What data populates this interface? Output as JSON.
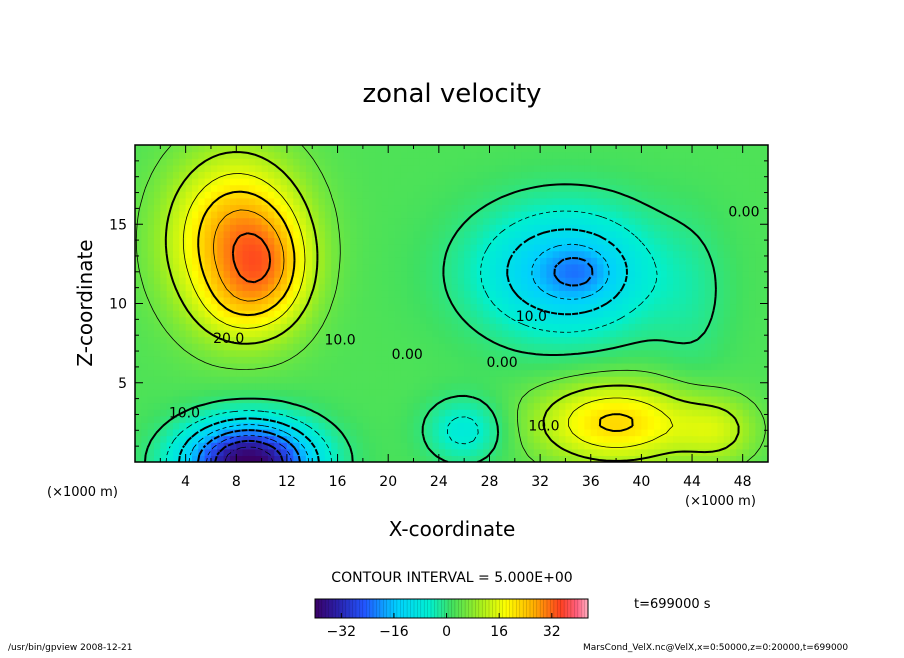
{
  "chart_data": {
    "type": "heatmap",
    "title": "zonal velocity",
    "xlabel": "X-coordinate",
    "ylabel": "Z-coordinate",
    "x_unit": "(×1000 m)",
    "y_unit_label": "(×1000 m)",
    "xlim": [
      0,
      50
    ],
    "ylim": [
      0,
      20
    ],
    "x_ticks": [
      4,
      8,
      12,
      16,
      20,
      24,
      28,
      32,
      36,
      40,
      44,
      48
    ],
    "y_ticks": [
      5,
      10,
      15
    ],
    "contour_interval_text": "CONTOUR INTERVAL = 5.000E+00",
    "time_text": "t=699000 s",
    "colorbar": {
      "min": -40,
      "max": 43,
      "ticks": [
        -32,
        -16,
        0,
        16,
        32
      ]
    },
    "contour_labels": [
      {
        "text": "20.0",
        "x": 7.4,
        "y": 7.5
      },
      {
        "text": "10.0",
        "x": 16.2,
        "y": 7.4
      },
      {
        "text": "10.0",
        "x": 3.9,
        "y": 2.8
      },
      {
        "text": "0.00",
        "x": 21.5,
        "y": 6.5
      },
      {
        "text": "0.00",
        "x": 29.0,
        "y": 6.0
      },
      {
        "text": "10.0",
        "x": 31.3,
        "y": 8.9
      },
      {
        "text": "10.0",
        "x": 32.3,
        "y": 2.0
      },
      {
        "text": "0.00",
        "x": 48.1,
        "y": 15.5
      }
    ],
    "field": {
      "background": 3,
      "blobs": [
        {
          "x": 8,
          "z": 14,
          "sx": 5.0,
          "sz": 5.0,
          "amp": 24
        },
        {
          "x": 11,
          "z": 12,
          "sx": 3.0,
          "sz": 3.5,
          "amp": 10
        },
        {
          "x": 8,
          "z": 10,
          "sx": 3.0,
          "sz": 2.5,
          "amp": 5
        },
        {
          "x": 34,
          "z": 12,
          "sx": 7.0,
          "sz": 4.0,
          "amp": -20
        },
        {
          "x": 35,
          "z": 12,
          "sx": 2.5,
          "sz": 1.5,
          "amp": -6
        },
        {
          "x": 9,
          "z": 0,
          "sx": 5.0,
          "sz": 2.5,
          "amp": -44
        },
        {
          "x": 38,
          "z": 2.5,
          "sx": 6.0,
          "sz": 2.5,
          "amp": 18
        },
        {
          "x": 46,
          "z": 2,
          "sx": 3.0,
          "sz": 2.0,
          "amp": 8
        },
        {
          "x": 26,
          "z": 2,
          "sx": 3.0,
          "sz": 2.0,
          "amp": -10
        },
        {
          "x": 44,
          "z": 10,
          "sx": 3.0,
          "sz": 5.0,
          "amp": -3
        }
      ]
    }
  },
  "footer": {
    "left": "/usr/bin/gpview   2008-12-21",
    "right": "MarsCond_VelX.nc@VelX,x=0:50000,z=0:20000,t=699000"
  }
}
